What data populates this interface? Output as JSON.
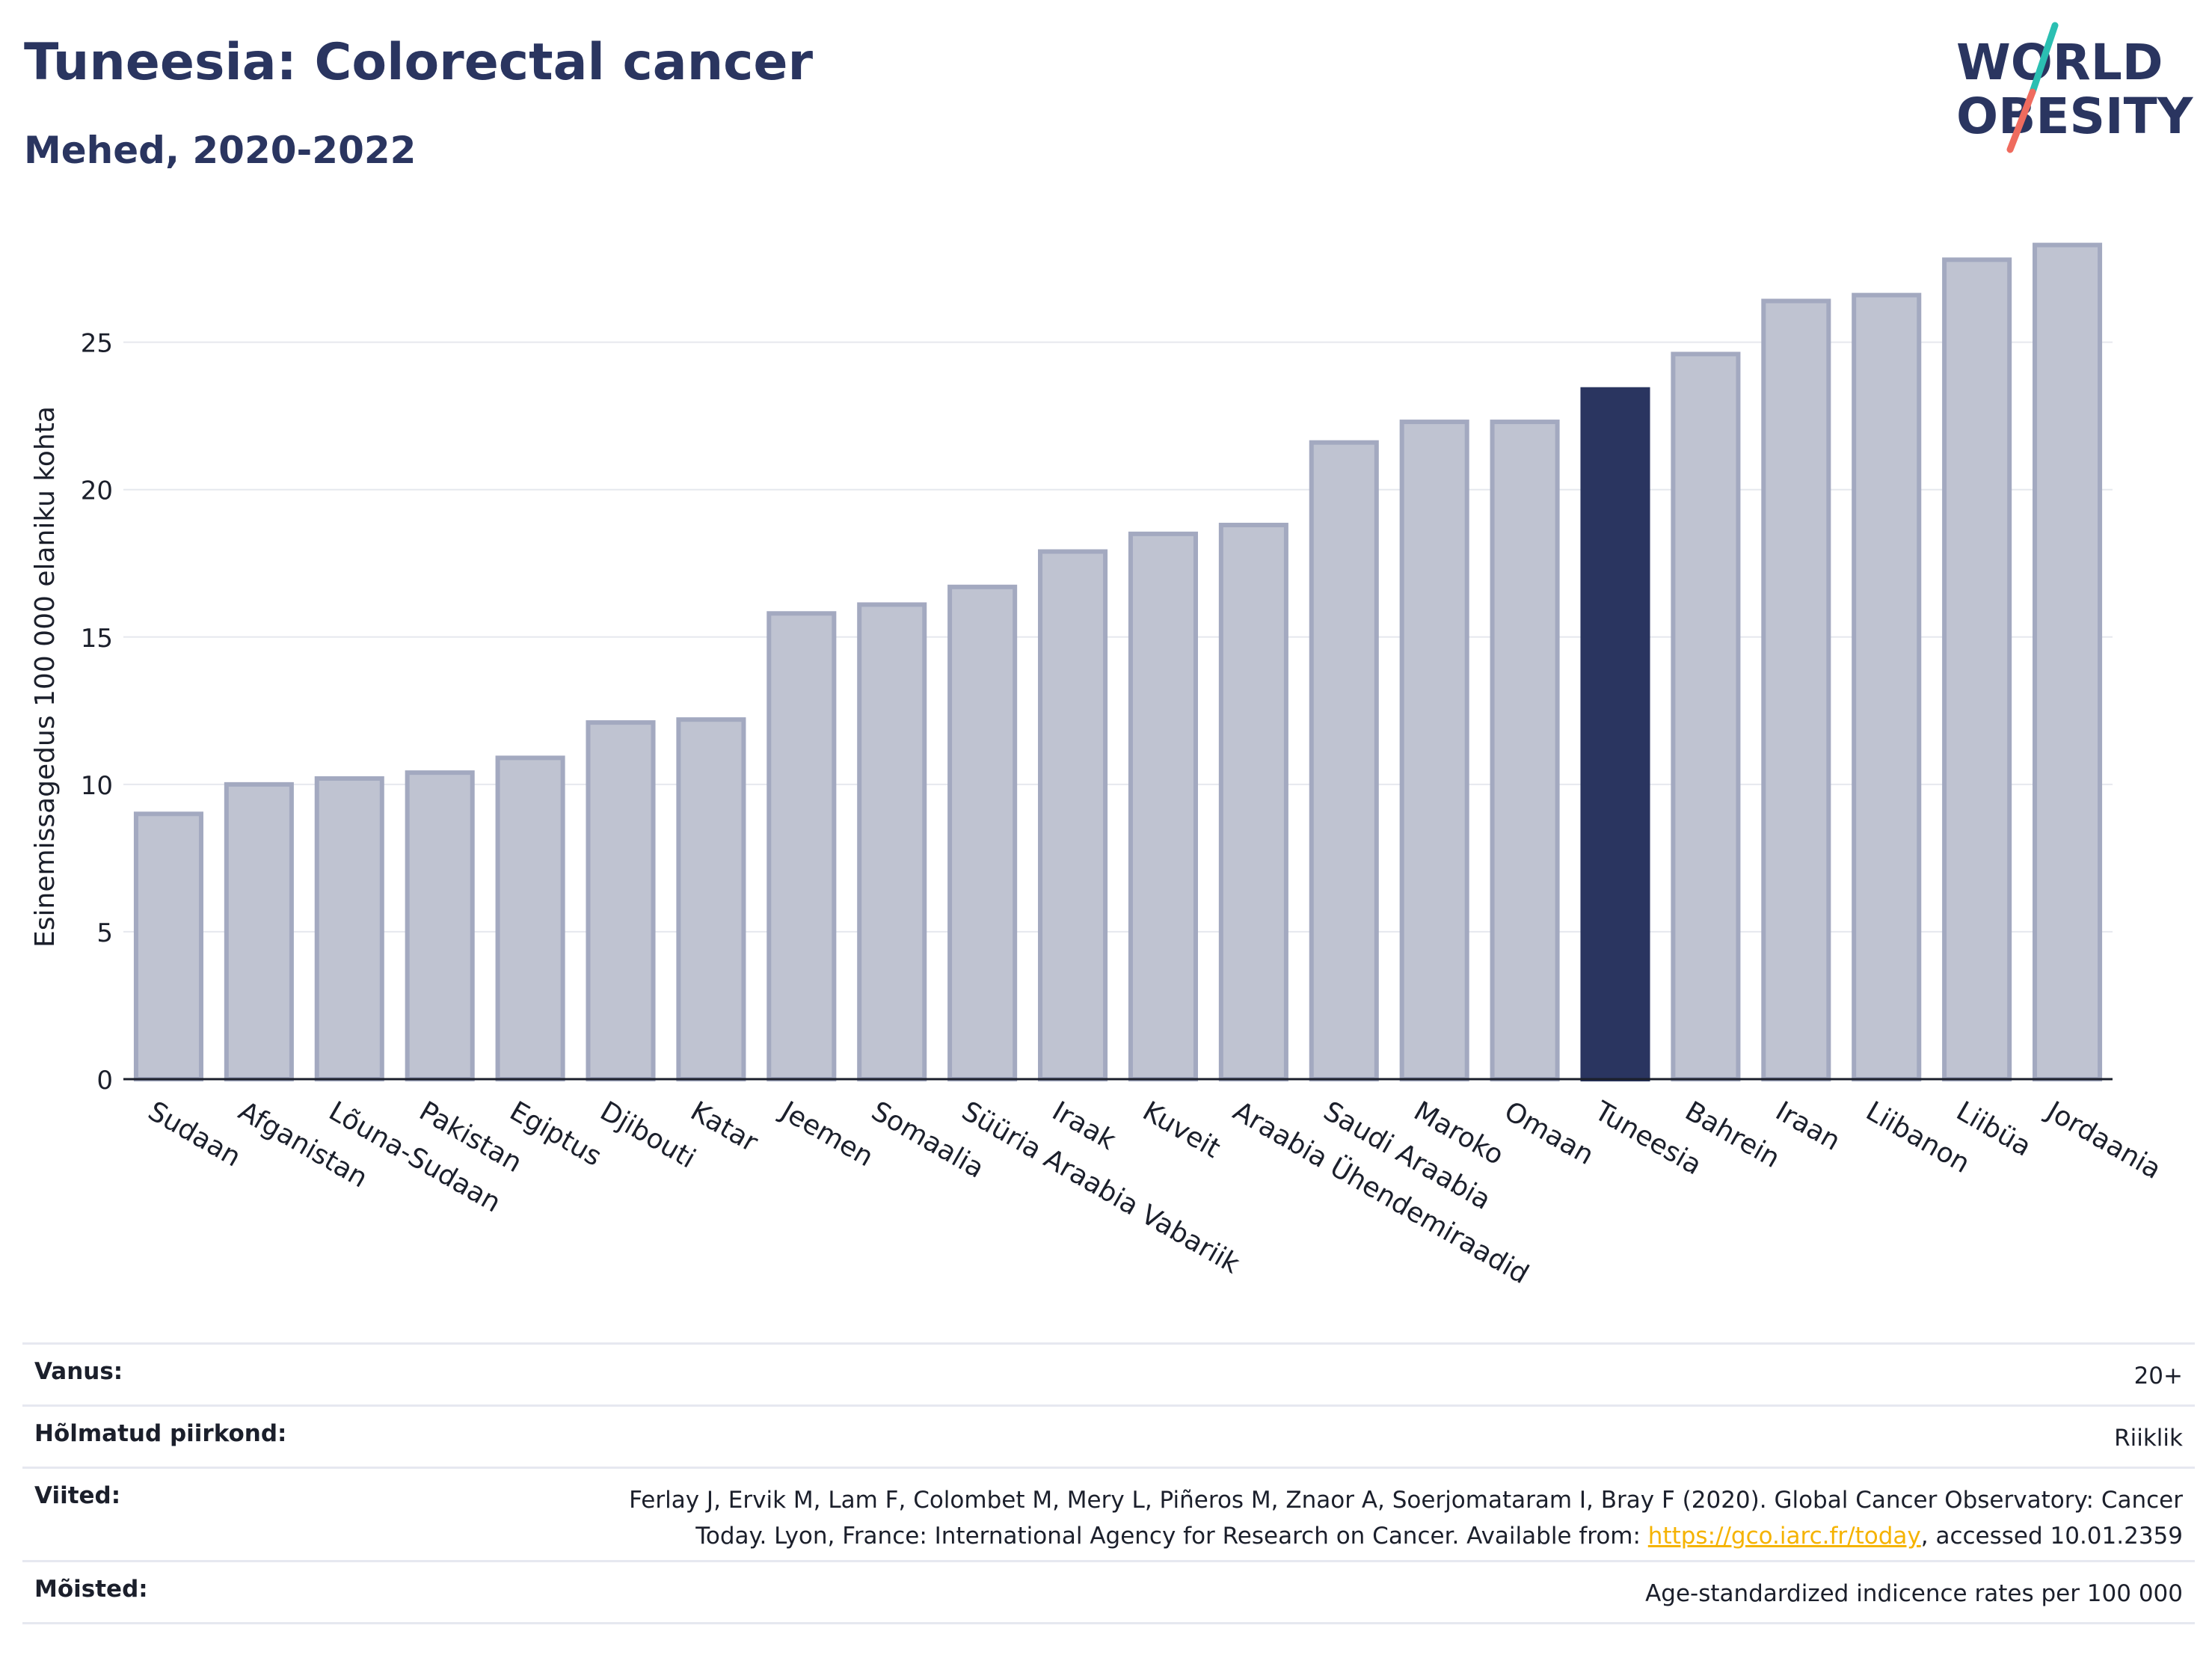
{
  "header": {
    "title": "Tuneesia: Colorectal cancer",
    "subtitle": "Mehed, 2020-2022"
  },
  "logo": {
    "line1": "WORLD",
    "line2": "OBESITY",
    "teal": "#2bbfb2",
    "coral": "#ef6b5e",
    "navy": "#2a3560"
  },
  "chart_data": {
    "type": "bar",
    "ylabel": "Esinemissagedus 100 000 elaniku kohta",
    "ylim": [
      0,
      29
    ],
    "yticks": [
      0,
      5,
      10,
      15,
      20,
      25
    ],
    "grid": true,
    "highlight": "Tuneesia",
    "bar_color": "#bfc3d1",
    "bar_edge_color": "#a3a9c0",
    "highlight_color": "#2a3560",
    "categories": [
      "Sudaan",
      "Afganistan",
      "Lõuna-Sudaan",
      "Pakistan",
      "Egiptus",
      "Djibouti",
      "Katar",
      "Jeemen",
      "Somaalia",
      "Süüria Araabia Vabariik",
      "Iraak",
      "Kuveit",
      "Araabia Ühendemiraadid",
      "Saudi Araabia",
      "Maroko",
      "Omaan",
      "Tuneesia",
      "Bahrein",
      "Iraan",
      "Liibanon",
      "Liibüa",
      "Jordaania"
    ],
    "values": [
      9.0,
      10.0,
      10.2,
      10.4,
      10.9,
      12.1,
      12.2,
      15.8,
      16.1,
      16.7,
      17.9,
      18.5,
      18.8,
      21.6,
      22.3,
      22.3,
      23.4,
      24.6,
      26.4,
      26.6,
      27.8,
      28.3
    ]
  },
  "info": {
    "age_label": "Vanus:",
    "age_value": "20+",
    "region_label": "Hõlmatud piirkond:",
    "region_value": "Riiklik",
    "refs_label": "Viited:",
    "refs_line1": "Ferlay J, Ervik M, Lam F, Colombet M, Mery L, Piñeros M, Znaor A, Soerjomataram I, Bray F (2020). Global Cancer Observatory: Cancer",
    "refs_line2_pre": "Today. Lyon, France: International Agency for Research on Cancer. Available from: ",
    "refs_link": "https://gco.iarc.fr/today",
    "refs_line2_post": ", accessed 10.01.2359",
    "defs_label": "Mõisted:",
    "defs_value": "Age-standardized indicence rates per 100 000"
  }
}
